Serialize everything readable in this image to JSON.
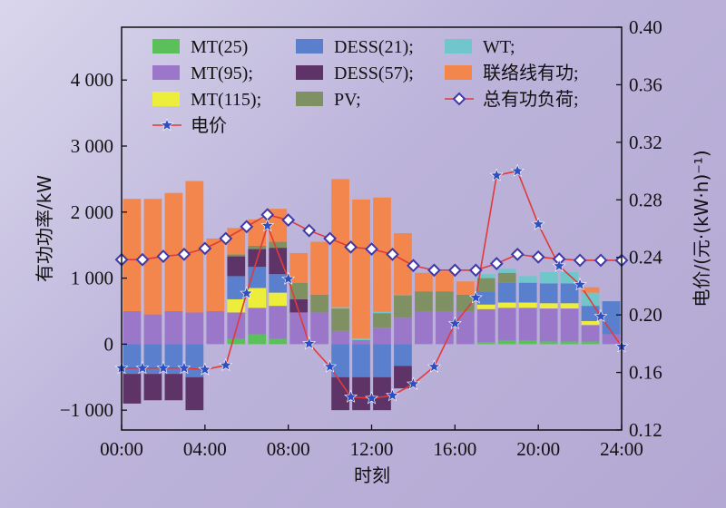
{
  "chart_data": {
    "type": "bar",
    "xlabel": "时刻",
    "ylabel": "有功功率/kW",
    "y2label": "电价/(元·(kW·h)⁻¹)",
    "xticks": [
      "00:00",
      "04:00",
      "08:00",
      "12:00",
      "16:00",
      "20:00",
      "24:00"
    ],
    "yticks": [
      "−1 000",
      "0",
      "1 000",
      "2 000",
      "3 000",
      "4 000"
    ],
    "y2ticks": [
      "0.12",
      "0.16",
      "0.20",
      "0.24",
      "0.28",
      "0.32",
      "0.36",
      "0.40"
    ],
    "ylim": [
      -1300,
      4800
    ],
    "y2lim": [
      0.12,
      0.4
    ],
    "xlim": [
      0,
      24
    ],
    "hours": [
      1,
      2,
      3,
      4,
      5,
      6,
      7,
      8,
      9,
      10,
      11,
      12,
      13,
      14,
      15,
      16,
      17,
      18,
      19,
      20,
      21,
      22,
      23,
      24
    ],
    "legend_columns": [
      [
        "MT(25)",
        "MT(95)",
        "MT(115)",
        "电价"
      ],
      [
        "DESS(21)",
        "DESS(57)",
        "PV"
      ],
      [
        "WT",
        "联络线有功",
        "总有功负荷"
      ]
    ],
    "legend_suffixes": [
      "",
      ";",
      ";",
      "",
      ";",
      ";",
      ";",
      ";",
      ";",
      ";"
    ],
    "colors": {
      "MT25": "#5bbf5a",
      "MT95": "#9b77c9",
      "MT115": "#eded3c",
      "DESS21": "#5a7fcc",
      "DESS57": "#5e3468",
      "PV": "#7f9163",
      "WT": "#6fc7cb",
      "tie": "#f2864c",
      "load_line": "#e23a3a",
      "load_marker": "#3f38a8",
      "price_line": "#e23a3a",
      "price_marker": "#2f4fc0"
    },
    "series": [
      {
        "name": "MT(25)",
        "key": "MT25",
        "values": [
          0,
          0,
          0,
          0,
          0,
          80,
          150,
          80,
          0,
          0,
          0,
          0,
          0,
          0,
          0,
          0,
          0,
          30,
          50,
          50,
          40,
          40,
          40,
          0
        ]
      },
      {
        "name": "MT(95)",
        "key": "MT95",
        "values": [
          500,
          450,
          500,
          480,
          500,
          400,
          400,
          500,
          480,
          480,
          200,
          60,
          250,
          400,
          500,
          500,
          500,
          500,
          500,
          500,
          500,
          500,
          250,
          150
        ]
      },
      {
        "name": "MT(115)",
        "key": "MT115",
        "values": [
          0,
          0,
          0,
          0,
          0,
          200,
          300,
          200,
          0,
          0,
          0,
          0,
          0,
          0,
          0,
          0,
          0,
          70,
          80,
          80,
          80,
          80,
          60,
          0
        ]
      },
      {
        "name": "DESS(21)",
        "key": "DESS21",
        "values": [
          -450,
          -450,
          -450,
          -500,
          0,
          350,
          320,
          280,
          0,
          0,
          -500,
          -500,
          -500,
          -330,
          0,
          0,
          0,
          200,
          300,
          300,
          300,
          300,
          230,
          500
        ]
      },
      {
        "name": "DESS(57)",
        "key": "DESS57",
        "values": [
          -450,
          -400,
          -400,
          -500,
          0,
          300,
          270,
          400,
          200,
          0,
          -500,
          -500,
          -500,
          -340,
          0,
          0,
          0,
          0,
          0,
          0,
          0,
          0,
          0,
          0
        ]
      },
      {
        "name": "PV",
        "key": "PV",
        "values": [
          0,
          0,
          0,
          0,
          0,
          30,
          50,
          90,
          250,
          270,
          340,
          0,
          220,
          340,
          300,
          300,
          250,
          200,
          150,
          0,
          0,
          0,
          0,
          0
        ]
      },
      {
        "name": "WT",
        "key": "WT",
        "values": [
          0,
          0,
          0,
          0,
          0,
          0,
          0,
          0,
          0,
          0,
          20,
          30,
          20,
          10,
          0,
          0,
          0,
          60,
          60,
          100,
          170,
          170,
          200,
          0
        ]
      },
      {
        "name": "联络线有功",
        "key": "tie",
        "values": [
          1700,
          1750,
          1790,
          1990,
          1100,
          400,
          400,
          500,
          450,
          800,
          1940,
          2100,
          1730,
          930,
          280,
          300,
          200,
          0,
          0,
          0,
          0,
          0,
          80,
          0
        ]
      }
    ],
    "line_series": [
      {
        "name": "总有功负荷",
        "axis": "left",
        "values": [
          1280,
          1330,
          1360,
          1450,
          1600,
          1780,
          1960,
          1880,
          1720,
          1600,
          1470,
          1440,
          1360,
          1190,
          1120,
          1120,
          1120,
          1220,
          1360,
          1320,
          1290,
          1270,
          1270,
          1270
        ]
      },
      {
        "name": "电价",
        "axis": "right",
        "values": [
          0.163,
          0.163,
          0.163,
          0.162,
          0.165,
          0.215,
          0.262,
          0.225,
          0.18,
          0.164,
          0.143,
          0.142,
          0.144,
          0.152,
          0.164,
          0.194,
          0.212,
          0.297,
          0.3,
          0.263,
          0.234,
          0.221,
          0.199,
          0.178
        ]
      }
    ],
    "grid": false,
    "legend_position": "top-inside"
  }
}
